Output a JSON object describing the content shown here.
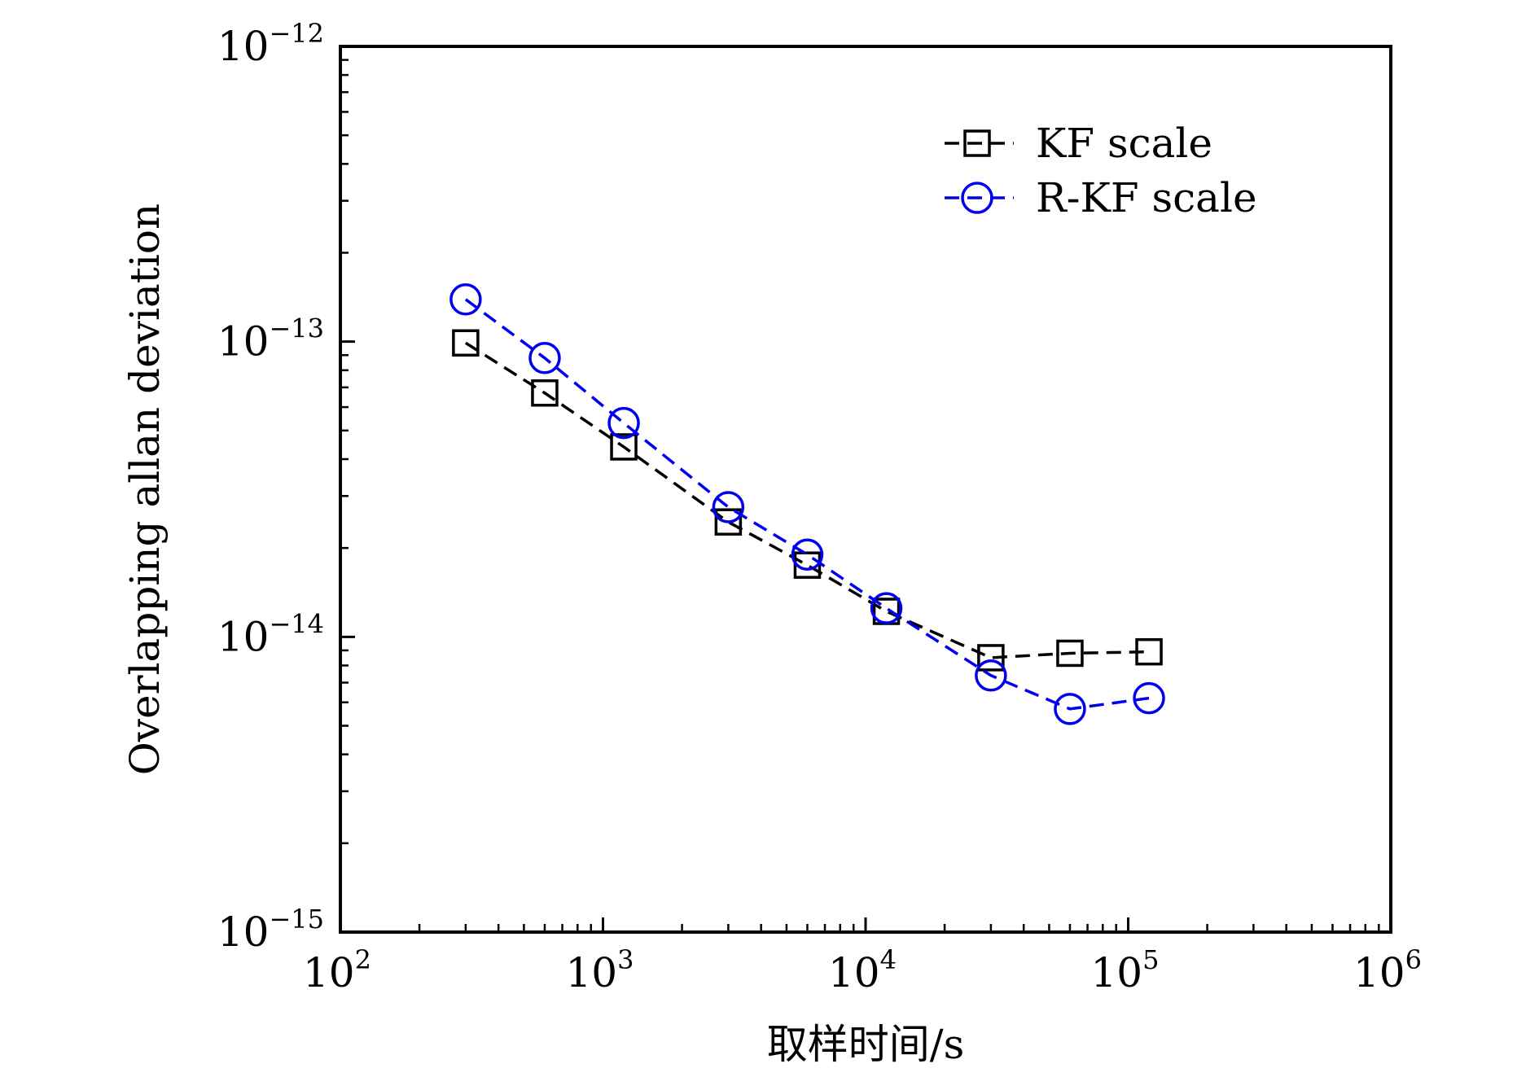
{
  "chart_data": {
    "type": "line",
    "title": "",
    "xlabel": "取样时间/s",
    "ylabel": "Overlapping allan deviation",
    "xscale": "log",
    "yscale": "log",
    "xlim": [
      100,
      1000000
    ],
    "ylim": [
      1e-15,
      1e-12
    ],
    "grid": false,
    "x_ticks": [
      {
        "base": "10",
        "exp": "2",
        "value": 100
      },
      {
        "base": "10",
        "exp": "3",
        "value": 1000
      },
      {
        "base": "10",
        "exp": "4",
        "value": 10000
      },
      {
        "base": "10",
        "exp": "5",
        "value": 100000
      },
      {
        "base": "10",
        "exp": "6",
        "value": 1000000
      }
    ],
    "y_ticks": [
      {
        "base": "10",
        "exp": "−15",
        "value": 1e-15
      },
      {
        "base": "10",
        "exp": "−14",
        "value": 1e-14
      },
      {
        "base": "10",
        "exp": "−13",
        "value": 1e-13
      },
      {
        "base": "10",
        "exp": "−12",
        "value": 1e-12
      }
    ],
    "legend_position": "top-right",
    "x": [
      300,
      600,
      1200,
      3000,
      6000,
      12000,
      30000,
      60000,
      120000
    ],
    "series": [
      {
        "name": "KF scale",
        "marker": "square",
        "color": "#000000",
        "values": [
          9.9e-14,
          6.7e-14,
          4.4e-14,
          2.45e-14,
          1.75e-14,
          1.22e-14,
          8.5e-15,
          8.8e-15,
          8.9e-15
        ]
      },
      {
        "name": "R-KF scale",
        "marker": "circle",
        "color": "#0000ee",
        "values": [
          1.39e-13,
          8.8e-14,
          5.3e-14,
          2.75e-14,
          1.9e-14,
          1.25e-14,
          7.4e-15,
          5.7e-15,
          6.2e-15
        ]
      }
    ]
  }
}
